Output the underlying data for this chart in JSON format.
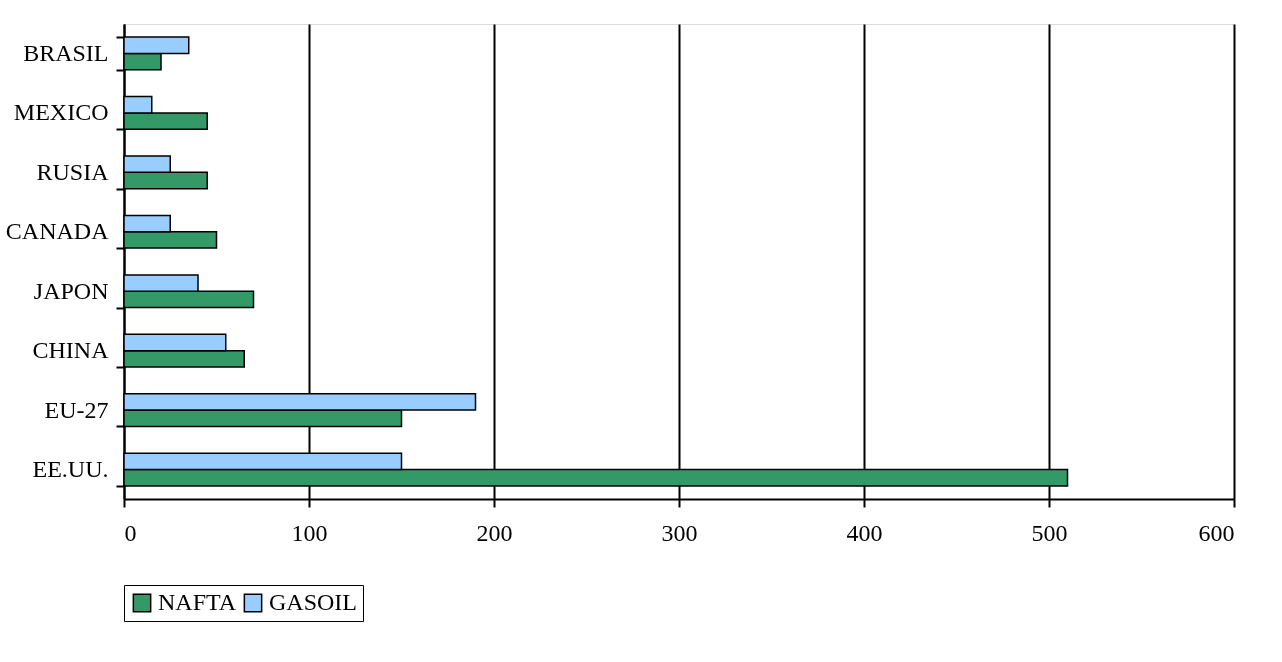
{
  "chart_data": {
    "type": "bar",
    "orientation": "horizontal",
    "categories": [
      "BRASIL",
      "MEXICO",
      "RUSIA",
      "CANADA",
      "JAPON",
      "CHINA",
      "EU-27",
      "EE.UU."
    ],
    "series": [
      {
        "name": "NAFTA",
        "color": "#339966",
        "values": [
          20,
          45,
          45,
          50,
          70,
          65,
          150,
          510
        ]
      },
      {
        "name": "GASOIL",
        "color": "#99ccff",
        "values": [
          35,
          15,
          25,
          25,
          40,
          55,
          190,
          150
        ]
      }
    ],
    "xlim": [
      0,
      600
    ],
    "xticks": [
      0,
      100,
      200,
      300,
      400,
      500,
      600
    ],
    "grid": "x",
    "legend": "bottom"
  }
}
